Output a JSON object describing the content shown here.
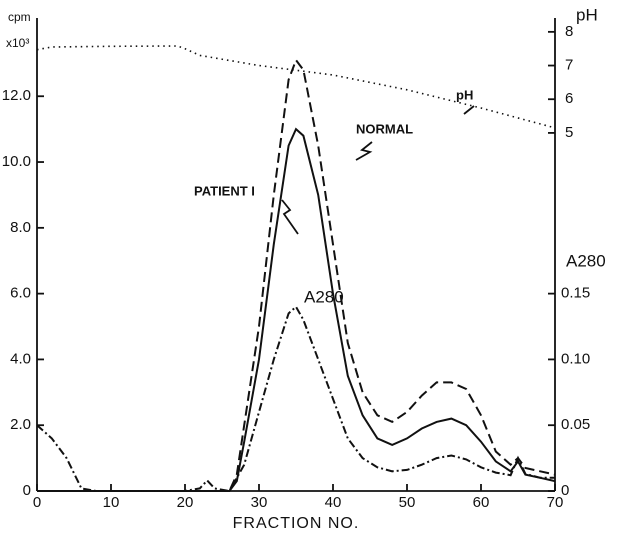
{
  "chart_data": {
    "type": "line",
    "xlabel": "FRACTION NO.",
    "ylabel": "cpm",
    "ylabel_unit": "x10³",
    "y2label": "A280",
    "y3label": "pH",
    "xlim": [
      0,
      70
    ],
    "xticks": [
      0,
      10,
      20,
      30,
      40,
      50,
      60,
      70
    ],
    "ylim": [
      0,
      14.5
    ],
    "yticks": [
      0,
      {
        "value": 2,
        "label": "2.0"
      },
      {
        "value": 4,
        "label": "4.0"
      },
      {
        "value": 6,
        "label": "6.0"
      },
      {
        "value": 8,
        "label": "8.0"
      },
      {
        "value": 10,
        "label": "10.0"
      },
      {
        "value": 12,
        "label": "12.0"
      }
    ],
    "y2lim": [
      0,
      0.3625
    ],
    "y2ticks": [
      0,
      0.05,
      {
        "value": 0.1,
        "label": "0.10"
      },
      0.15
    ],
    "y3lim": [
      -5.63,
      8.53
    ],
    "y3ticks": [
      5,
      6,
      7,
      8
    ],
    "series": [
      {
        "name": "NORMAL",
        "color": "#111",
        "style": "dashed",
        "x": [
          0,
          26,
          27,
          28,
          30,
          32,
          34,
          35,
          36,
          38,
          40,
          42,
          44,
          46,
          48,
          50,
          52,
          54,
          56,
          58,
          60,
          62,
          64,
          65,
          66,
          68,
          70
        ],
        "values": [
          0,
          0,
          0.5,
          2,
          5,
          9,
          12.5,
          13.1,
          12.8,
          10.5,
          7.5,
          4.5,
          3,
          2.3,
          2.1,
          2.4,
          2.9,
          3.3,
          3.3,
          3.1,
          2.3,
          1.2,
          0.8,
          1.0,
          0.7,
          0.6,
          0.5
        ]
      },
      {
        "name": "PATIENT I",
        "color": "#111",
        "style": "solid",
        "x": [
          0,
          26,
          27,
          28,
          30,
          32,
          34,
          35,
          36,
          38,
          40,
          42,
          44,
          46,
          48,
          50,
          52,
          54,
          56,
          58,
          60,
          62,
          64,
          65,
          66,
          68,
          70
        ],
        "values": [
          0,
          0,
          0.3,
          1.5,
          4,
          7.5,
          10.5,
          11,
          10.8,
          9,
          6,
          3.5,
          2.3,
          1.6,
          1.4,
          1.6,
          1.9,
          2.1,
          2.2,
          2.0,
          1.5,
          0.9,
          0.6,
          0.9,
          0.5,
          0.4,
          0.3
        ]
      },
      {
        "name": "A280",
        "color": "#111",
        "style": "dashdot",
        "axis": "y2",
        "x": [
          0,
          2,
          4,
          6,
          8,
          20,
          22,
          23,
          24,
          26,
          28,
          30,
          32,
          34,
          35,
          36,
          38,
          40,
          42,
          44,
          46,
          48,
          50,
          52,
          54,
          56,
          58,
          60,
          62,
          64,
          65,
          66,
          68,
          70
        ],
        "values": [
          0.05,
          0.04,
          0.025,
          0.002,
          0,
          0,
          0.002,
          0.008,
          0.002,
          0,
          0.02,
          0.06,
          0.1,
          0.135,
          0.14,
          0.13,
          0.1,
          0.07,
          0.04,
          0.025,
          0.018,
          0.015,
          0.016,
          0.02,
          0.025,
          0.027,
          0.024,
          0.018,
          0.014,
          0.012,
          0.025,
          0.013,
          0.01,
          0.01
        ]
      },
      {
        "name": "pH",
        "color": "#111",
        "style": "dotted",
        "axis": "y3",
        "x": [
          0,
          2,
          10,
          19,
          20,
          22,
          30,
          40,
          50,
          60,
          70
        ],
        "values": [
          7.47,
          7.55,
          7.57,
          7.58,
          7.5,
          7.3,
          7.0,
          6.72,
          6.28,
          5.74,
          5.15
        ]
      }
    ]
  }
}
